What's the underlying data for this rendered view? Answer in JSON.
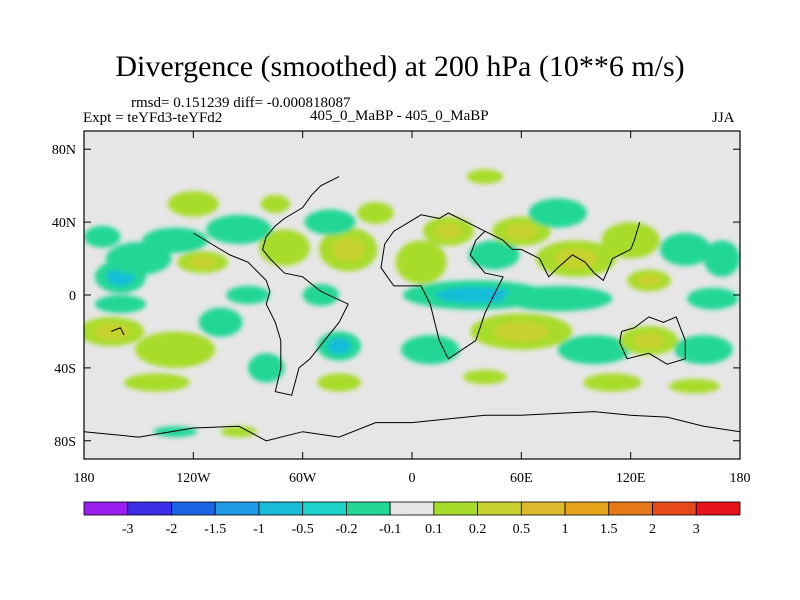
{
  "chart_data": {
    "type": "heatmap",
    "title": "Divergence (smoothed) at 200 hPa (10**6 m/s)",
    "stats_text": "rmsd= 0.151239 diff= -0.000818087",
    "expt_text": "Expt = teYFd3-teYFd2",
    "case_text": "405_0_MaBP - 405_0_MaBP",
    "season": "JJA",
    "x_range": [
      -180,
      180
    ],
    "y_range": [
      -90,
      90
    ],
    "x_ticks": [
      {
        "value": -180,
        "label": "180"
      },
      {
        "value": -120,
        "label": "120W"
      },
      {
        "value": -60,
        "label": "60W"
      },
      {
        "value": 0,
        "label": "0"
      },
      {
        "value": 60,
        "label": "60E"
      },
      {
        "value": 120,
        "label": "120E"
      },
      {
        "value": 180,
        "label": "180"
      }
    ],
    "y_ticks": [
      {
        "value": 80,
        "label": "80N"
      },
      {
        "value": 40,
        "label": "40N"
      },
      {
        "value": 0,
        "label": "0"
      },
      {
        "value": -40,
        "label": "40S"
      },
      {
        "value": -80,
        "label": "80S"
      }
    ],
    "colorbar": {
      "colors": [
        "#9a1ef0",
        "#3b2ee6",
        "#1a64e6",
        "#1e9ae6",
        "#18bcd8",
        "#1ed2cc",
        "#22d796",
        "#e6e6e6",
        "#a8dc2a",
        "#c8d22e",
        "#dcbc2e",
        "#e6a41a",
        "#e6781a",
        "#e64a1a",
        "#e6141a"
      ],
      "labels": [
        "-3",
        "-2",
        "-1.5",
        "-1",
        "-0.5",
        "-0.2",
        "-0.1",
        "0.1",
        "0.2",
        "0.5",
        "1",
        "1.5",
        "2",
        "3"
      ]
    },
    "blobs": [
      {
        "lon": -160,
        "lat": 10,
        "rx": 14,
        "ry": 9,
        "level": "neg_med"
      },
      {
        "lon": -150,
        "lat": 20,
        "rx": 18,
        "ry": 9,
        "level": "neg_weak"
      },
      {
        "lon": -115,
        "lat": 18,
        "rx": 14,
        "ry": 6,
        "level": "pos_med"
      },
      {
        "lon": -130,
        "lat": 30,
        "rx": 18,
        "ry": 7,
        "level": "neg_weak"
      },
      {
        "lon": -170,
        "lat": 32,
        "rx": 10,
        "ry": 6,
        "level": "neg_weak"
      },
      {
        "lon": -70,
        "lat": 26,
        "rx": 14,
        "ry": 10,
        "level": "pos_weak"
      },
      {
        "lon": -95,
        "lat": 36,
        "rx": 18,
        "ry": 8,
        "level": "neg_weak"
      },
      {
        "lon": -120,
        "lat": 50,
        "rx": 14,
        "ry": 7,
        "level": "pos_weak"
      },
      {
        "lon": -75,
        "lat": 50,
        "rx": 8,
        "ry": 5,
        "level": "pos_weak"
      },
      {
        "lon": -35,
        "lat": 25,
        "rx": 16,
        "ry": 12,
        "level": "pos_med"
      },
      {
        "lon": -45,
        "lat": 40,
        "rx": 14,
        "ry": 7,
        "level": "neg_weak"
      },
      {
        "lon": -20,
        "lat": 45,
        "rx": 10,
        "ry": 6,
        "level": "pos_weak"
      },
      {
        "lon": 5,
        "lat": 18,
        "rx": 14,
        "ry": 12,
        "level": "pos_weak"
      },
      {
        "lon": 20,
        "lat": 35,
        "rx": 14,
        "ry": 8,
        "level": "pos_med"
      },
      {
        "lon": 45,
        "lat": 22,
        "rx": 14,
        "ry": 8,
        "level": "neg_weak"
      },
      {
        "lon": 60,
        "lat": 35,
        "rx": 16,
        "ry": 8,
        "level": "pos_med"
      },
      {
        "lon": 80,
        "lat": 45,
        "rx": 16,
        "ry": 8,
        "level": "neg_weak"
      },
      {
        "lon": 90,
        "lat": 20,
        "rx": 22,
        "ry": 10,
        "level": "pos_med"
      },
      {
        "lon": 120,
        "lat": 30,
        "rx": 16,
        "ry": 10,
        "level": "pos_weak"
      },
      {
        "lon": 130,
        "lat": 8,
        "rx": 12,
        "ry": 6,
        "level": "pos_med"
      },
      {
        "lon": 150,
        "lat": 25,
        "rx": 14,
        "ry": 9,
        "level": "neg_weak"
      },
      {
        "lon": 170,
        "lat": 20,
        "rx": 10,
        "ry": 10,
        "level": "neg_weak"
      },
      {
        "lon": 40,
        "lat": 65,
        "rx": 10,
        "ry": 4,
        "level": "pos_weak"
      },
      {
        "lon": -50,
        "lat": 0,
        "rx": 10,
        "ry": 6,
        "level": "neg_weak"
      },
      {
        "lon": 35,
        "lat": 0,
        "rx": 40,
        "ry": 8,
        "level": "neg_med"
      },
      {
        "lon": 80,
        "lat": -2,
        "rx": 30,
        "ry": 7,
        "level": "neg_weak"
      },
      {
        "lon": -90,
        "lat": 0,
        "rx": 12,
        "ry": 5,
        "level": "neg_weak"
      },
      {
        "lon": -160,
        "lat": -5,
        "rx": 14,
        "ry": 5,
        "level": "neg_weak"
      },
      {
        "lon": 165,
        "lat": -2,
        "rx": 14,
        "ry": 6,
        "level": "neg_weak"
      },
      {
        "lon": -165,
        "lat": -20,
        "rx": 18,
        "ry": 8,
        "level": "pos_med"
      },
      {
        "lon": -130,
        "lat": -30,
        "rx": 22,
        "ry": 10,
        "level": "pos_weak"
      },
      {
        "lon": -105,
        "lat": -15,
        "rx": 12,
        "ry": 8,
        "level": "neg_weak"
      },
      {
        "lon": -80,
        "lat": -40,
        "rx": 10,
        "ry": 8,
        "level": "neg_weak"
      },
      {
        "lon": -40,
        "lat": -28,
        "rx": 12,
        "ry": 8,
        "level": "neg_med"
      },
      {
        "lon": 10,
        "lat": -30,
        "rx": 16,
        "ry": 8,
        "level": "neg_weak"
      },
      {
        "lon": 60,
        "lat": -20,
        "rx": 28,
        "ry": 10,
        "level": "pos_med"
      },
      {
        "lon": 100,
        "lat": -30,
        "rx": 20,
        "ry": 8,
        "level": "neg_weak"
      },
      {
        "lon": 130,
        "lat": -25,
        "rx": 16,
        "ry": 8,
        "level": "pos_med"
      },
      {
        "lon": 160,
        "lat": -30,
        "rx": 16,
        "ry": 8,
        "level": "neg_weak"
      },
      {
        "lon": -140,
        "lat": -48,
        "rx": 18,
        "ry": 5,
        "level": "pos_weak"
      },
      {
        "lon": -40,
        "lat": -48,
        "rx": 12,
        "ry": 5,
        "level": "pos_weak"
      },
      {
        "lon": 40,
        "lat": -45,
        "rx": 12,
        "ry": 4,
        "level": "pos_weak"
      },
      {
        "lon": 110,
        "lat": -48,
        "rx": 16,
        "ry": 5,
        "level": "pos_weak"
      },
      {
        "lon": 155,
        "lat": -50,
        "rx": 14,
        "ry": 4,
        "level": "pos_weak"
      },
      {
        "lon": -95,
        "lat": -75,
        "rx": 10,
        "ry": 3,
        "level": "pos_weak"
      },
      {
        "lon": -130,
        "lat": -75,
        "rx": 12,
        "ry": 3,
        "level": "neg_weak"
      }
    ],
    "coastlines": [
      [
        [
          -120,
          34
        ],
        [
          -110,
          28
        ],
        [
          -100,
          22
        ],
        [
          -90,
          18
        ],
        [
          -80,
          8
        ],
        [
          -78,
          2
        ],
        [
          -80,
          -5
        ],
        [
          -75,
          -15
        ],
        [
          -72,
          -25
        ],
        [
          -72,
          -40
        ],
        [
          -75,
          -53
        ],
        [
          -66,
          -55
        ],
        [
          -62,
          -40
        ],
        [
          -56,
          -35
        ],
        [
          -48,
          -25
        ],
        [
          -40,
          -15
        ],
        [
          -35,
          -5
        ],
        [
          -50,
          2
        ],
        [
          -60,
          10
        ],
        [
          -70,
          12
        ],
        [
          -78,
          20
        ],
        [
          -82,
          25
        ],
        [
          -80,
          32
        ],
        [
          -75,
          38
        ],
        [
          -70,
          42
        ],
        [
          -65,
          45
        ],
        [
          -60,
          48
        ]
      ],
      [
        [
          -15,
          28
        ],
        [
          -10,
          35
        ],
        [
          -5,
          38
        ],
        [
          5,
          44
        ],
        [
          15,
          42
        ],
        [
          20,
          45
        ],
        [
          30,
          40
        ],
        [
          40,
          35
        ],
        [
          35,
          30
        ],
        [
          32,
          22
        ],
        [
          40,
          12
        ],
        [
          50,
          10
        ],
        [
          45,
          0
        ],
        [
          40,
          -10
        ],
        [
          35,
          -25
        ],
        [
          20,
          -35
        ],
        [
          15,
          -25
        ],
        [
          10,
          -5
        ],
        [
          5,
          5
        ],
        [
          -10,
          5
        ],
        [
          -17,
          15
        ],
        [
          -15,
          28
        ]
      ],
      [
        [
          40,
          35
        ],
        [
          50,
          30
        ],
        [
          55,
          25
        ],
        [
          60,
          25
        ],
        [
          70,
          20
        ],
        [
          75,
          10
        ],
        [
          80,
          15
        ],
        [
          88,
          22
        ],
        [
          95,
          18
        ],
        [
          100,
          12
        ],
        [
          105,
          8
        ],
        [
          108,
          15
        ],
        [
          110,
          20
        ],
        [
          120,
          25
        ],
        [
          122,
          30
        ],
        [
          125,
          40
        ]
      ],
      [
        [
          115,
          -20
        ],
        [
          122,
          -18
        ],
        [
          130,
          -12
        ],
        [
          138,
          -15
        ],
        [
          145,
          -12
        ],
        [
          150,
          -25
        ],
        [
          150,
          -35
        ],
        [
          140,
          -38
        ],
        [
          130,
          -32
        ],
        [
          118,
          -35
        ],
        [
          114,
          -26
        ],
        [
          115,
          -20
        ]
      ],
      [
        [
          -180,
          -75
        ],
        [
          -150,
          -78
        ],
        [
          -120,
          -73
        ],
        [
          -95,
          -72
        ],
        [
          -80,
          -80
        ],
        [
          -60,
          -75
        ],
        [
          -40,
          -78
        ],
        [
          -20,
          -70
        ],
        [
          0,
          -70
        ],
        [
          20,
          -68
        ],
        [
          40,
          -66
        ],
        [
          60,
          -66
        ],
        [
          80,
          -65
        ],
        [
          100,
          -64
        ],
        [
          120,
          -66
        ],
        [
          140,
          -67
        ],
        [
          160,
          -72
        ],
        [
          180,
          -75
        ]
      ],
      [
        [
          -165,
          -20
        ],
        [
          -160,
          -18
        ],
        [
          -158,
          -22
        ]
      ],
      [
        [
          -60,
          48
        ],
        [
          -55,
          55
        ],
        [
          -50,
          60
        ],
        [
          -40,
          65
        ]
      ]
    ]
  }
}
